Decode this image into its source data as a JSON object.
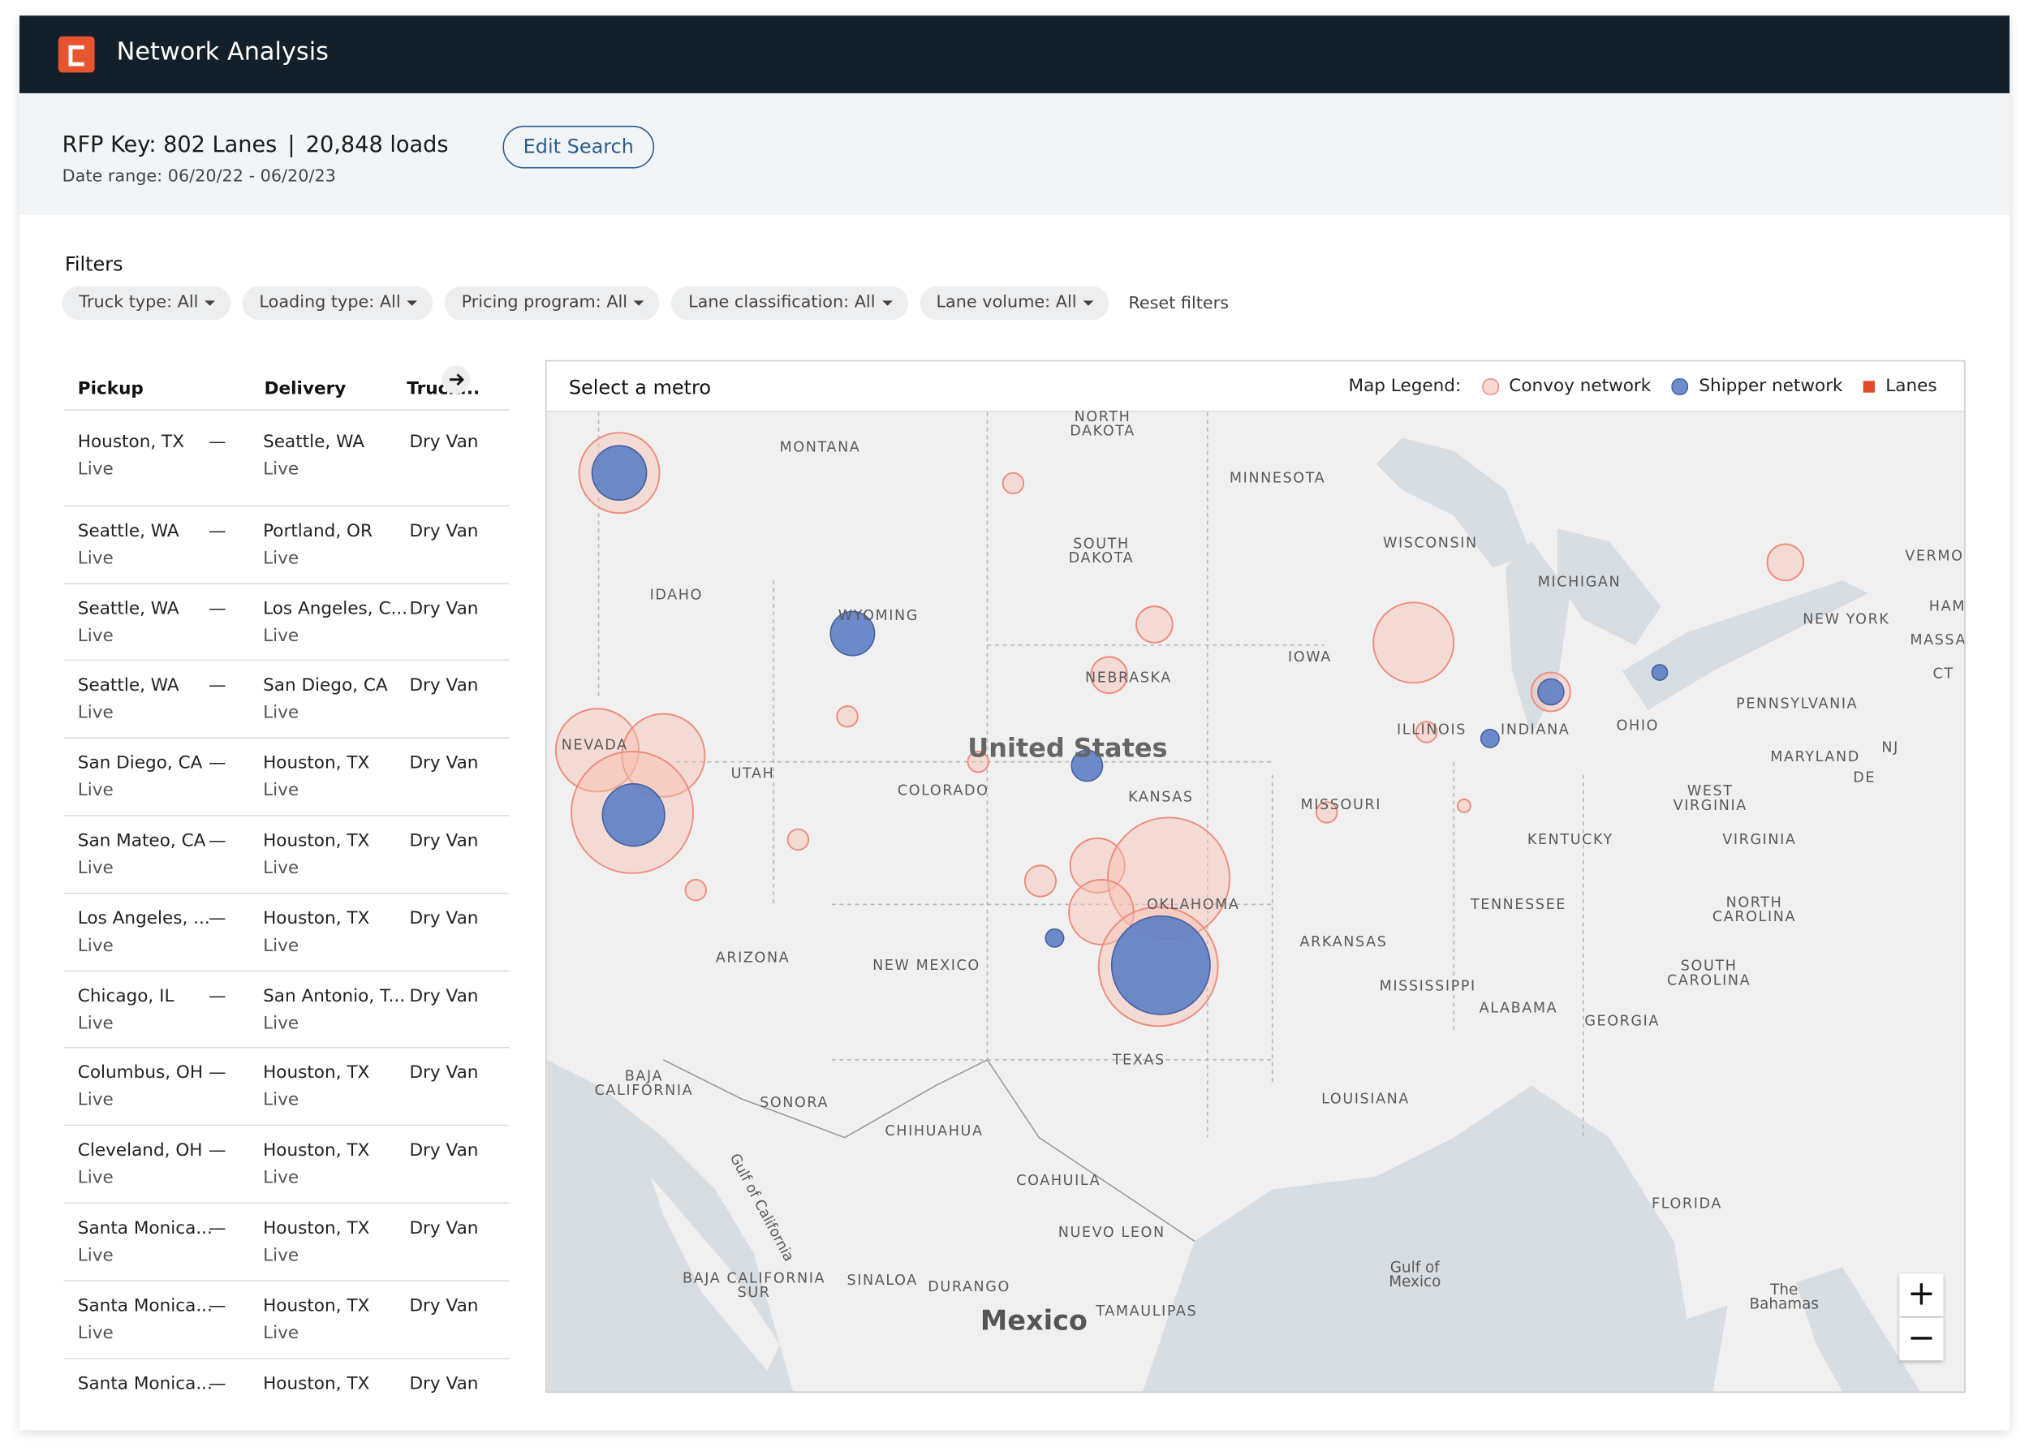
{
  "header": {
    "title": "Network Analysis"
  },
  "summary": {
    "rfp_key": "RFP Key: 802 Lanes",
    "separator": "|",
    "loads": "20,848 loads",
    "date_range": "Date range: 06/20/22 - 06/20/23",
    "edit_button": "Edit Search"
  },
  "filters": {
    "title": "Filters",
    "items": [
      "Truck type: All",
      "Loading type: All",
      "Pricing program: All",
      "Lane classification: All",
      "Lane volume: All"
    ],
    "reset": "Reset filters"
  },
  "table": {
    "columns": [
      "Pickup",
      "Delivery",
      "Truck..."
    ],
    "dash": "—",
    "rows": [
      {
        "pickup": "Houston, TX",
        "pickup_type": "Live",
        "delivery": "Seattle, WA",
        "delivery_type": "Live",
        "truck": "Dry Van"
      },
      {
        "pickup": "Seattle, WA",
        "pickup_type": "Live",
        "delivery": "Portland, OR",
        "delivery_type": "Live",
        "truck": "Dry Van"
      },
      {
        "pickup": "Seattle, WA",
        "pickup_type": "Live",
        "delivery": "Los Angeles, C...",
        "delivery_type": "Live",
        "truck": "Dry Van"
      },
      {
        "pickup": "Seattle, WA",
        "pickup_type": "Live",
        "delivery": "San Diego, CA",
        "delivery_type": "Live",
        "truck": "Dry Van"
      },
      {
        "pickup": "San Diego, CA",
        "pickup_type": "Live",
        "delivery": "Houston, TX",
        "delivery_type": "Live",
        "truck": "Dry Van"
      },
      {
        "pickup": "San Mateo, CA",
        "pickup_type": "Live",
        "delivery": "Houston, TX",
        "delivery_type": "Live",
        "truck": "Dry Van"
      },
      {
        "pickup": "Los Angeles, ...",
        "pickup_type": "Live",
        "delivery": "Houston, TX",
        "delivery_type": "Live",
        "truck": "Dry Van"
      },
      {
        "pickup": "Chicago, IL",
        "pickup_type": "Live",
        "delivery": "San Antonio, T...",
        "delivery_type": "Live",
        "truck": "Dry Van"
      },
      {
        "pickup": "Columbus, OH",
        "pickup_type": "Live",
        "delivery": "Houston, TX",
        "delivery_type": "Live",
        "truck": "Dry Van"
      },
      {
        "pickup": "Cleveland, OH",
        "pickup_type": "Live",
        "delivery": "Houston, TX",
        "delivery_type": "Live",
        "truck": "Dry Van"
      },
      {
        "pickup": "Santa Monica...",
        "pickup_type": "Live",
        "delivery": "Houston, TX",
        "delivery_type": "Live",
        "truck": "Dry Van"
      },
      {
        "pickup": "Santa Monica...",
        "pickup_type": "Live",
        "delivery": "Houston, TX",
        "delivery_type": "Live",
        "truck": "Dry Van"
      },
      {
        "pickup": "Santa Monica...",
        "delivery": "Houston, TX",
        "truck": "Dry Van"
      }
    ]
  },
  "map": {
    "title": "Select a metro",
    "legend_title": "Map Legend:",
    "legend": [
      "Convoy network",
      "Shipper network",
      "Lanes"
    ],
    "zoom": [
      "+",
      "−"
    ],
    "labels": [
      "MONTANA",
      "NORTH DAKOTA",
      "MINNESOTA",
      "SOUTH DAKOTA",
      "WISCONSIN",
      "MICHIGAN",
      "IDAHO",
      "WYOMING",
      "IOWA",
      "NEW YORK",
      "NEBRASKA",
      "PENNSYLVANIA",
      "ILLINOIS",
      "INDIANA",
      "OHIO",
      "United States",
      "UTAH",
      "COLORADO",
      "KANSAS",
      "MISSOURI",
      "MARYLAND",
      "NJ",
      "DE",
      "WEST VIRGINIA",
      "KENTUCKY",
      "VIRGINIA",
      "NEVADA",
      "TENNESSEE",
      "NORTH CAROLINA",
      "OKLAHOMA",
      "ARKANSAS",
      "ARIZONA",
      "NEW MEXICO",
      "SOUTH CAROLINA",
      "MISSISSIPPI",
      "ALABAMA",
      "GEORGIA",
      "TEXAS",
      "BAJA CALIFORNIA",
      "SONORA",
      "LOUISIANA",
      "CHIHUAHUA",
      "COAHUILA",
      "FLORIDA",
      "NUEVO LEON",
      "Gulf of California",
      "Gulf of Mexico",
      "BAJA CALIFORNIA SUR",
      "SINALOA",
      "DURANGO",
      "TAMAULIPAS",
      "Mexico",
      "The Bahamas",
      "VERMO",
      "HAM",
      "MASSA",
      "CT"
    ]
  }
}
